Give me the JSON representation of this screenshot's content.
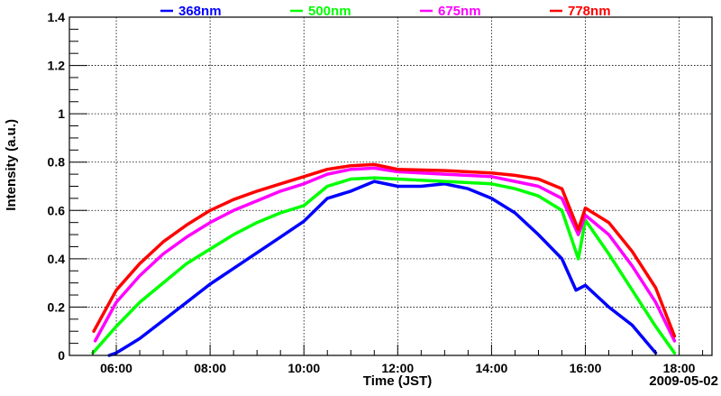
{
  "chart_data": {
    "type": "line",
    "title": "",
    "xlabel": "Time (JST)",
    "ylabel": "Intensity (a.u.)",
    "date_label": "2009-05-02",
    "xlim": [
      5.0,
      18.7
    ],
    "ylim": [
      0,
      1.4
    ],
    "grid": true,
    "legend_placement": "top",
    "x_ticks": [
      {
        "v": 6,
        "label": "06:00"
      },
      {
        "v": 8,
        "label": "08:00"
      },
      {
        "v": 10,
        "label": "10:00"
      },
      {
        "v": 12,
        "label": "12:00"
      },
      {
        "v": 14,
        "label": "14:00"
      },
      {
        "v": 16,
        "label": "16:00"
      },
      {
        "v": 18,
        "label": "18:00"
      }
    ],
    "y_ticks": [
      {
        "v": 0,
        "label": "0"
      },
      {
        "v": 0.2,
        "label": "0.2"
      },
      {
        "v": 0.4,
        "label": "0.4"
      },
      {
        "v": 0.6,
        "label": "0.6"
      },
      {
        "v": 0.8,
        "label": "0.8"
      },
      {
        "v": 1.0,
        "label": "1"
      },
      {
        "v": 1.2,
        "label": "1.2"
      },
      {
        "v": 1.4,
        "label": "1.4"
      }
    ],
    "series": [
      {
        "name": "368nm",
        "color": "#0000ff",
        "x": [
          5.85,
          6.0,
          6.5,
          7.0,
          7.5,
          8.0,
          8.5,
          9.0,
          9.5,
          10.0,
          10.5,
          11.0,
          11.5,
          12.0,
          12.5,
          13.0,
          13.5,
          14.0,
          14.5,
          15.0,
          15.5,
          15.8,
          16.0,
          16.5,
          17.0,
          17.5
        ],
        "y": [
          0.0,
          0.01,
          0.07,
          0.145,
          0.22,
          0.295,
          0.36,
          0.425,
          0.49,
          0.555,
          0.65,
          0.68,
          0.72,
          0.7,
          0.7,
          0.71,
          0.69,
          0.65,
          0.59,
          0.5,
          0.4,
          0.27,
          0.29,
          0.2,
          0.125,
          0.01
        ]
      },
      {
        "name": "500nm",
        "color": "#00ff00",
        "x": [
          5.5,
          6.0,
          6.5,
          7.0,
          7.5,
          8.0,
          8.5,
          9.0,
          9.5,
          10.0,
          10.5,
          11.0,
          11.5,
          12.0,
          13.0,
          14.0,
          14.5,
          15.0,
          15.5,
          15.85,
          16.0,
          16.5,
          17.0,
          17.5,
          17.9
        ],
        "y": [
          0.01,
          0.12,
          0.22,
          0.3,
          0.38,
          0.44,
          0.5,
          0.55,
          0.59,
          0.62,
          0.7,
          0.73,
          0.735,
          0.73,
          0.72,
          0.71,
          0.69,
          0.66,
          0.6,
          0.4,
          0.56,
          0.42,
          0.27,
          0.12,
          0.01
        ]
      },
      {
        "name": "675nm",
        "color": "#ff00ff",
        "x": [
          5.55,
          6.0,
          6.5,
          7.0,
          7.5,
          8.0,
          8.5,
          9.0,
          9.5,
          10.0,
          10.5,
          11.0,
          11.5,
          12.0,
          13.0,
          14.0,
          14.5,
          15.0,
          15.5,
          15.85,
          16.0,
          16.5,
          17.0,
          17.5,
          17.9
        ],
        "y": [
          0.06,
          0.22,
          0.33,
          0.42,
          0.49,
          0.55,
          0.6,
          0.64,
          0.68,
          0.71,
          0.75,
          0.77,
          0.775,
          0.76,
          0.75,
          0.74,
          0.72,
          0.7,
          0.65,
          0.5,
          0.58,
          0.5,
          0.37,
          0.22,
          0.06
        ]
      },
      {
        "name": "778nm",
        "color": "#ff0000",
        "x": [
          5.52,
          6.0,
          6.5,
          7.0,
          7.5,
          8.0,
          8.5,
          9.0,
          9.5,
          10.0,
          10.5,
          11.0,
          11.5,
          12.0,
          13.0,
          14.0,
          14.5,
          15.0,
          15.5,
          15.85,
          16.0,
          16.5,
          17.0,
          17.5,
          17.9
        ],
        "y": [
          0.1,
          0.27,
          0.38,
          0.47,
          0.54,
          0.6,
          0.645,
          0.68,
          0.71,
          0.74,
          0.77,
          0.785,
          0.79,
          0.77,
          0.765,
          0.755,
          0.745,
          0.73,
          0.69,
          0.52,
          0.61,
          0.55,
          0.43,
          0.28,
          0.08
        ]
      }
    ]
  }
}
